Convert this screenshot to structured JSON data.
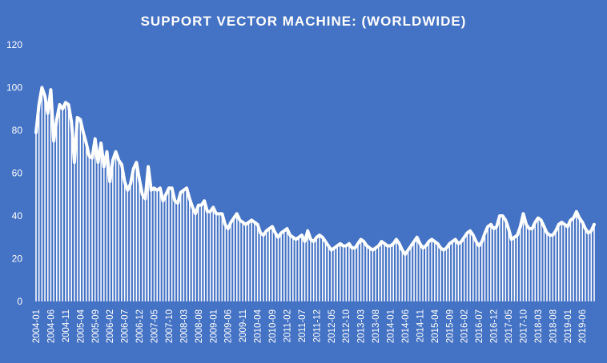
{
  "chart_data": {
    "type": "bar",
    "overlay": "line",
    "title": "SUPPORT VECTOR MACHINE: (WORLDWIDE)",
    "xlabel": "",
    "ylabel": "",
    "ylim": [
      0,
      120
    ],
    "y_ticks": [
      0,
      20,
      40,
      60,
      80,
      100,
      120
    ],
    "x_tick_labels": [
      "2004-01",
      "2004-06",
      "2004-11",
      "2005-04",
      "2005-09",
      "2006-02",
      "2006-07",
      "2006-12",
      "2007-05",
      "2007-10",
      "2008-03",
      "2008-08",
      "2009-01",
      "2009-06",
      "2009-11",
      "2010-04",
      "2010-09",
      "2011-02",
      "2011-07",
      "2011-12",
      "2012-05",
      "2012-10",
      "2013-03",
      "2013-08",
      "2014-01",
      "2014-06",
      "2014-11",
      "2015-04",
      "2015-09",
      "2016-02",
      "2016-07",
      "2016-12",
      "2017-05",
      "2017-10",
      "2018-03",
      "2018-08",
      "2019-01",
      "2019-06"
    ],
    "grid": false,
    "legend": "none",
    "colors": {
      "background": "#4472c4",
      "series": "#ffffff",
      "text": "#ffffff"
    },
    "series": [
      {
        "x_start": "2004-01",
        "frequency": "monthly",
        "values": [
          79,
          92,
          100,
          96,
          88,
          99,
          75,
          85,
          92,
          90,
          93,
          92,
          84,
          65,
          86,
          85,
          79,
          74,
          68,
          67,
          76,
          65,
          74,
          63,
          70,
          56,
          66,
          70,
          66,
          64,
          56,
          52,
          55,
          62,
          65,
          57,
          50,
          48,
          63,
          52,
          53,
          52,
          53,
          47,
          50,
          53,
          53,
          47,
          46,
          51,
          52,
          53,
          48,
          44,
          41,
          45,
          45,
          47,
          42,
          42,
          44,
          41,
          41,
          41,
          36,
          34,
          37,
          39,
          41,
          38,
          37,
          36,
          37,
          38,
          37,
          36,
          32,
          31,
          33,
          34,
          35,
          32,
          30,
          32,
          33,
          34,
          31,
          30,
          29,
          30,
          31,
          28,
          33,
          29,
          28,
          30,
          31,
          30,
          28,
          26,
          24,
          25,
          26,
          27,
          26,
          26,
          27,
          25,
          25,
          27,
          29,
          28,
          26,
          25,
          24,
          25,
          26,
          28,
          27,
          26,
          26,
          27,
          29,
          27,
          24,
          22,
          24,
          26,
          28,
          30,
          27,
          25,
          26,
          28,
          29,
          28,
          27,
          25,
          24,
          25,
          27,
          28,
          29,
          27,
          28,
          30,
          32,
          33,
          31,
          28,
          26,
          28,
          32,
          35,
          36,
          34,
          35,
          40,
          40,
          38,
          34,
          29,
          30,
          31,
          35,
          41,
          36,
          34,
          34,
          37,
          39,
          38,
          35,
          32,
          31,
          31,
          33,
          36,
          37,
          36,
          35,
          38,
          39,
          42,
          39,
          37,
          34,
          32,
          33,
          36
        ]
      }
    ]
  }
}
